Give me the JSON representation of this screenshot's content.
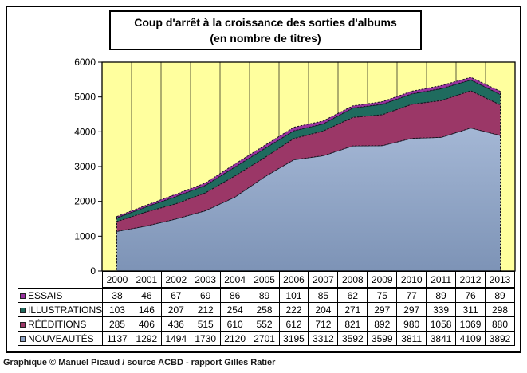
{
  "header": {
    "title_line1": "Coup d'arrêt à la croissance des sorties d'albums",
    "title_line2": "(en nombre de titres)"
  },
  "footer": {
    "credit": "Graphique © Manuel Picaud / source ACBD - rapport Gilles Ratier"
  },
  "chart_data": {
    "type": "area",
    "stacked": true,
    "title": "Coup d'arrêt à la croissance des sorties d'albums (en nombre de titres)",
    "xlabel": "",
    "ylabel": "",
    "categories": [
      "2000",
      "2001",
      "2002",
      "2003",
      "2004",
      "2005",
      "2006",
      "2007",
      "2008",
      "2009",
      "2010",
      "2011",
      "2012",
      "2013"
    ],
    "series": [
      {
        "name": "NOUVEAUTÉS",
        "color": "#8CA2C4",
        "gradient": [
          "#A4B7D5",
          "#7D93B6"
        ],
        "values": [
          1137,
          1292,
          1494,
          1730,
          2120,
          2701,
          3195,
          3312,
          3592,
          3599,
          3811,
          3841,
          4109,
          3892
        ]
      },
      {
        "name": "RÉÉDITIONS",
        "color": "#9B3767",
        "values": [
          285,
          406,
          436,
          515,
          610,
          552,
          612,
          712,
          821,
          892,
          980,
          1058,
          1069,
          880
        ]
      },
      {
        "name": "ILLUSTRATIONS",
        "color": "#1F6B5E",
        "values": [
          103,
          146,
          207,
          212,
          254,
          258,
          222,
          204,
          271,
          297,
          297,
          339,
          311,
          298
        ]
      },
      {
        "name": "ESSAIS",
        "color": "#9933A0",
        "values": [
          38,
          46,
          67,
          69,
          86,
          89,
          101,
          85,
          62,
          75,
          77,
          89,
          76,
          89
        ]
      }
    ],
    "legend_order_top_to_bottom": [
      "ESSAIS",
      "ILLUSTRATIONS",
      "RÉÉDITIONS",
      "NOUVEAUTÉS"
    ],
    "ylim": [
      0,
      6000
    ],
    "yticks": [
      0,
      1000,
      2000,
      3000,
      4000,
      5000,
      6000
    ],
    "grid": "vertical",
    "grid_color": "#5C5C3C",
    "plot_background": "#FFFF9E",
    "axis_color": "#000000",
    "layer_edge_color": "#141420",
    "legend_position": "table-left"
  }
}
